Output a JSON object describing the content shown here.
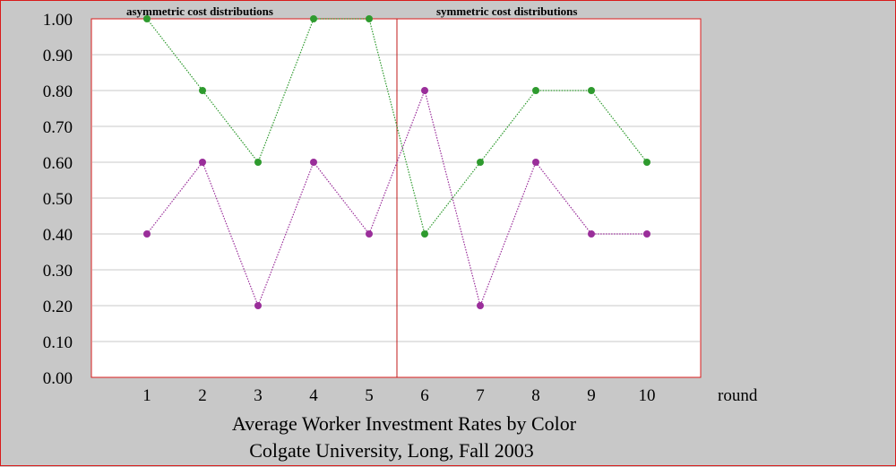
{
  "chart_data": {
    "type": "line",
    "title": "Average Worker Investment Rates by Color",
    "subtitle": "Colgate University, Long, Fall 2003",
    "xlabel": "round",
    "ylabel": "",
    "categories": [
      "1",
      "2",
      "3",
      "4",
      "5",
      "6",
      "7",
      "8",
      "9",
      "10"
    ],
    "y_tick_labels": [
      "0.00",
      "0.10",
      "0.20",
      "0.30",
      "0.40",
      "0.50",
      "0.60",
      "0.70",
      "0.80",
      "0.90",
      "1.00"
    ],
    "ylim": [
      0,
      1
    ],
    "grid": true,
    "regions": [
      {
        "label": "asymmetric cost distributions",
        "rounds": [
          1,
          5
        ]
      },
      {
        "label": "symmetric cost distributions",
        "rounds": [
          6,
          10
        ]
      }
    ],
    "divider_between_rounds": [
      5,
      6
    ],
    "series": [
      {
        "color": "#2e9a2e",
        "values": [
          1.0,
          0.8,
          0.6,
          1.0,
          1.0,
          0.4,
          0.6,
          0.8,
          0.8,
          0.6
        ]
      },
      {
        "color": "#9a2e9a",
        "values": [
          0.4,
          0.6,
          0.2,
          0.6,
          0.4,
          0.8,
          0.2,
          0.6,
          0.4,
          0.4
        ]
      }
    ],
    "colors": {
      "background": "#c8c8c8",
      "plot_area": "#ffffff",
      "plot_border": "#d81b1b",
      "gridline": "#c8c8c8",
      "divider": "#c01818"
    }
  }
}
